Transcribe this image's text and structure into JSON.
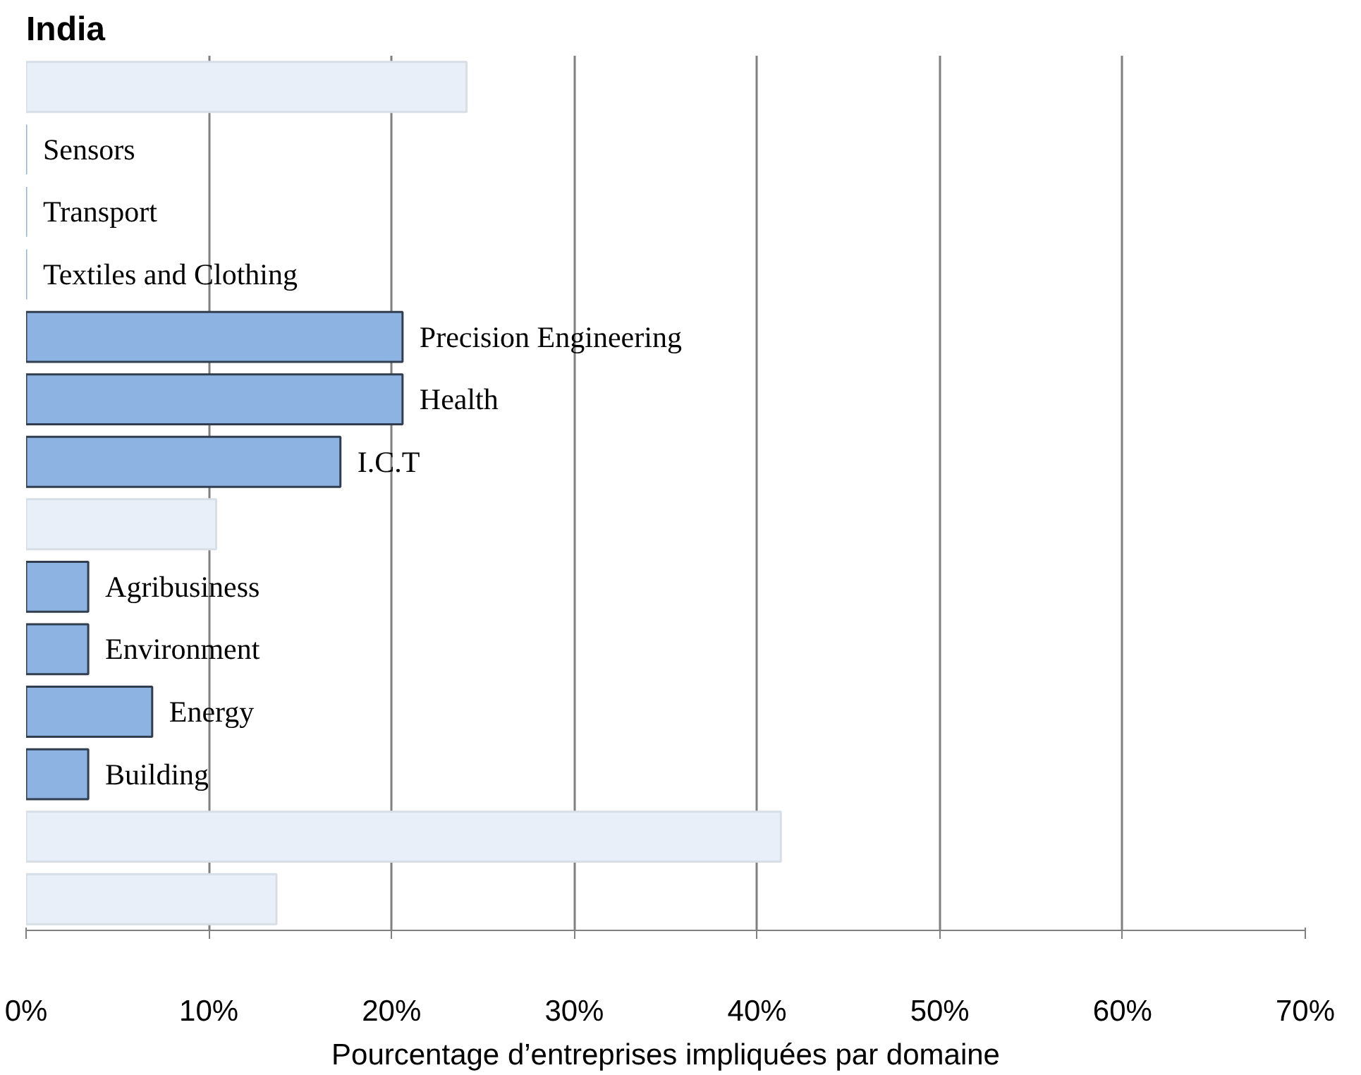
{
  "chart_data": {
    "type": "bar",
    "orientation": "horizontal",
    "title": "India",
    "xlabel": "Pourcentage d’entreprises impliquées par domaine",
    "categories": [
      null,
      "Sensors",
      "Transport",
      "Textiles and Clothing",
      "Precision Engineering",
      "Health",
      "I.C.T",
      null,
      "Agribusiness",
      "Environment",
      "Energy",
      "Building",
      null,
      null
    ],
    "values": [
      24.1,
      0,
      0,
      0,
      20.6,
      20.6,
      17.2,
      10.4,
      3.4,
      3.4,
      6.9,
      3.4,
      41.3,
      13.7
    ],
    "colors": [
      "#e9eff8",
      "#8db3e2",
      "#8db3e2",
      "#8db3e2",
      "#8db3e2",
      "#8db3e2",
      "#8db3e2",
      "#e9eff8",
      "#8db3e2",
      "#8db3e2",
      "#8db3e2",
      "#8db3e2",
      "#e9eff8",
      "#e9eff8"
    ],
    "xlim": [
      0,
      70
    ],
    "xticks": [
      {
        "value": 0,
        "label": "0%"
      },
      {
        "value": 10,
        "label": "10%"
      },
      {
        "value": 20,
        "label": "20%"
      },
      {
        "value": 30,
        "label": "30%"
      },
      {
        "value": 40,
        "label": "40%"
      },
      {
        "value": 50,
        "label": "50%"
      },
      {
        "value": 60,
        "label": "60%"
      },
      {
        "value": 70,
        "label": "70%"
      }
    ],
    "grid": "x",
    "tick_labels": "x"
  }
}
